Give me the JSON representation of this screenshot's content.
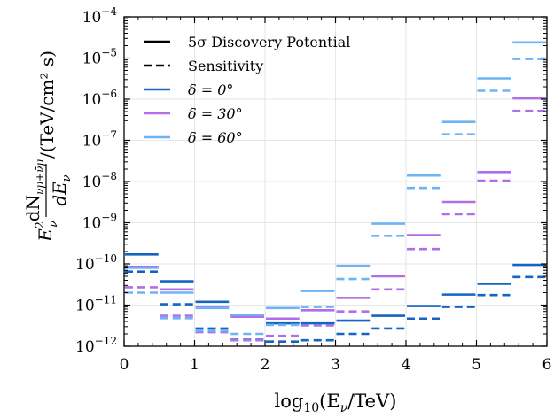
{
  "chart_data": {
    "type": "line",
    "title": "",
    "xlabel": {
      "pre": "log",
      "sub": "10",
      "mid": "(E",
      "sub2": "ν",
      "post": "/TeV)"
    },
    "ylabel": {
      "frac_num": "dN",
      "frac_num_sub": "νμ+ν̄μ",
      "frac_den": "dE",
      "frac_den_sub": "ν",
      "prefix": "E",
      "prefix_sup": "2",
      "prefix_sub": "ν",
      "units": "/(TeV/cm² s)"
    },
    "xlim": [
      0,
      6
    ],
    "ylim_log10": [
      -12,
      -4
    ],
    "y_scale": "log",
    "grid": true,
    "legend_position": "top-left",
    "x_ticks": [
      0,
      1,
      2,
      3,
      4,
      5,
      6
    ],
    "y_tick_exponents": [
      -12,
      -11,
      -10,
      -9,
      -8,
      -7,
      -6,
      -5,
      -4
    ],
    "y_tick_base": "10",
    "bin_edges": [
      0,
      0.5,
      1,
      1.5,
      2,
      2.5,
      3,
      3.5,
      4,
      4.5,
      5,
      5.5,
      6
    ],
    "line_styles": [
      {
        "name": "5σ Discovery Potential",
        "dash": "solid"
      },
      {
        "name": "Sensitivity",
        "dash": "dashed"
      }
    ],
    "series": [
      {
        "name": "δ = 0°",
        "color": "#1565c0",
        "discovery": [
          1.7e-10,
          3.8e-11,
          1.2e-11,
          5.8e-12,
          3.6e-12,
          3.6e-12,
          4.2e-12,
          5.5e-12,
          9.5e-12,
          1.8e-11,
          3.3e-11,
          9.5e-11
        ],
        "sensitivity": [
          6.5e-11,
          1.05e-11,
          2.7e-12,
          1.45e-12,
          1.3e-12,
          1.4e-12,
          2e-12,
          2.7e-12,
          4.7e-12,
          9e-12,
          1.75e-11,
          4.8e-11
        ]
      },
      {
        "name": "δ = 30°",
        "color": "#b06ee8",
        "discovery": [
          8.5e-11,
          2.4e-11,
          9e-12,
          5.2e-12,
          4.7e-12,
          7.5e-12,
          1.5e-11,
          5e-11,
          5e-10,
          3.2e-09,
          1.7e-08,
          1.05e-06
        ],
        "sensitivity": [
          2.7e-11,
          5.5e-12,
          2.2e-12,
          1.4e-12,
          1.8e-12,
          3.2e-12,
          7e-12,
          2.4e-11,
          2.3e-10,
          1.6e-09,
          1.05e-08,
          5.2e-07
        ]
      },
      {
        "name": "δ = 60°",
        "color": "#6cb4f5",
        "discovery": [
          8e-11,
          2e-11,
          8.5e-12,
          5.8e-12,
          8.5e-12,
          2.2e-11,
          9e-11,
          9.5e-10,
          1.4e-08,
          2.8e-07,
          3.2e-06,
          2.4e-05
        ],
        "sensitivity": [
          2e-11,
          4.8e-12,
          2.4e-12,
          2e-12,
          3.3e-12,
          9e-12,
          4.3e-11,
          4.8e-10,
          7e-09,
          1.4e-07,
          1.6e-06,
          9.5e-06
        ]
      }
    ]
  }
}
